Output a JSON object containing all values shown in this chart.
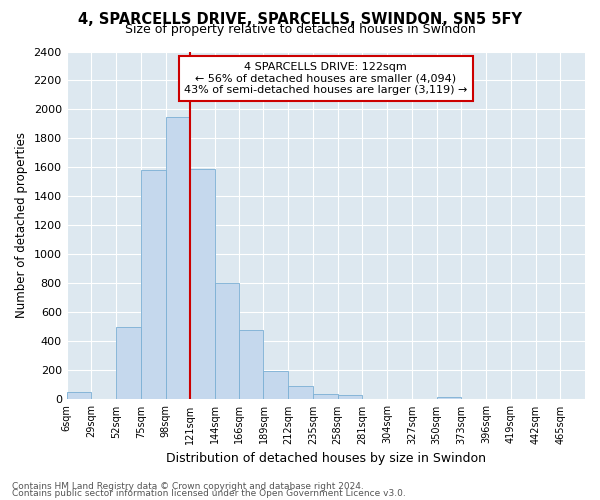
{
  "title": "4, SPARCELLS DRIVE, SPARCELLS, SWINDON, SN5 5FY",
  "subtitle": "Size of property relative to detached houses in Swindon",
  "xlabel": "Distribution of detached houses by size in Swindon",
  "ylabel": "Number of detached properties",
  "bar_color": "#c5d8ed",
  "bar_edgecolor": "#7bafd4",
  "vline_color": "#cc0000",
  "annotation_line1": "4 SPARCELLS DRIVE: 122sqm",
  "annotation_line2": "← 56% of detached houses are smaller (4,094)",
  "annotation_line3": "43% of semi-detached houses are larger (3,119) →",
  "annotation_box_color": "#cc0000",
  "footnote1": "Contains HM Land Registry data © Crown copyright and database right 2024.",
  "footnote2": "Contains public sector information licensed under the Open Government Licence v3.0.",
  "categories": [
    "6sqm",
    "29sqm",
    "52sqm",
    "75sqm",
    "98sqm",
    "121sqm",
    "144sqm",
    "166sqm",
    "189sqm",
    "212sqm",
    "235sqm",
    "258sqm",
    "281sqm",
    "304sqm",
    "327sqm",
    "350sqm",
    "373sqm",
    "396sqm",
    "419sqm",
    "442sqm",
    "465sqm"
  ],
  "values": [
    50,
    0,
    500,
    1580,
    1950,
    1590,
    800,
    480,
    195,
    90,
    35,
    30,
    0,
    0,
    0,
    20,
    0,
    0,
    0,
    0,
    0
  ],
  "bin_edges": [
    6,
    29,
    52,
    75,
    98,
    121,
    144,
    166,
    189,
    212,
    235,
    258,
    281,
    304,
    327,
    350,
    373,
    396,
    419,
    442,
    465,
    488
  ],
  "ylim": [
    0,
    2400
  ],
  "yticks": [
    0,
    200,
    400,
    600,
    800,
    1000,
    1200,
    1400,
    1600,
    1800,
    2000,
    2200,
    2400
  ],
  "vline_bin": 5,
  "figure_bg": "#ffffff",
  "plot_bg": "#dde8f0",
  "figsize": [
    6.0,
    5.0
  ],
  "dpi": 100
}
